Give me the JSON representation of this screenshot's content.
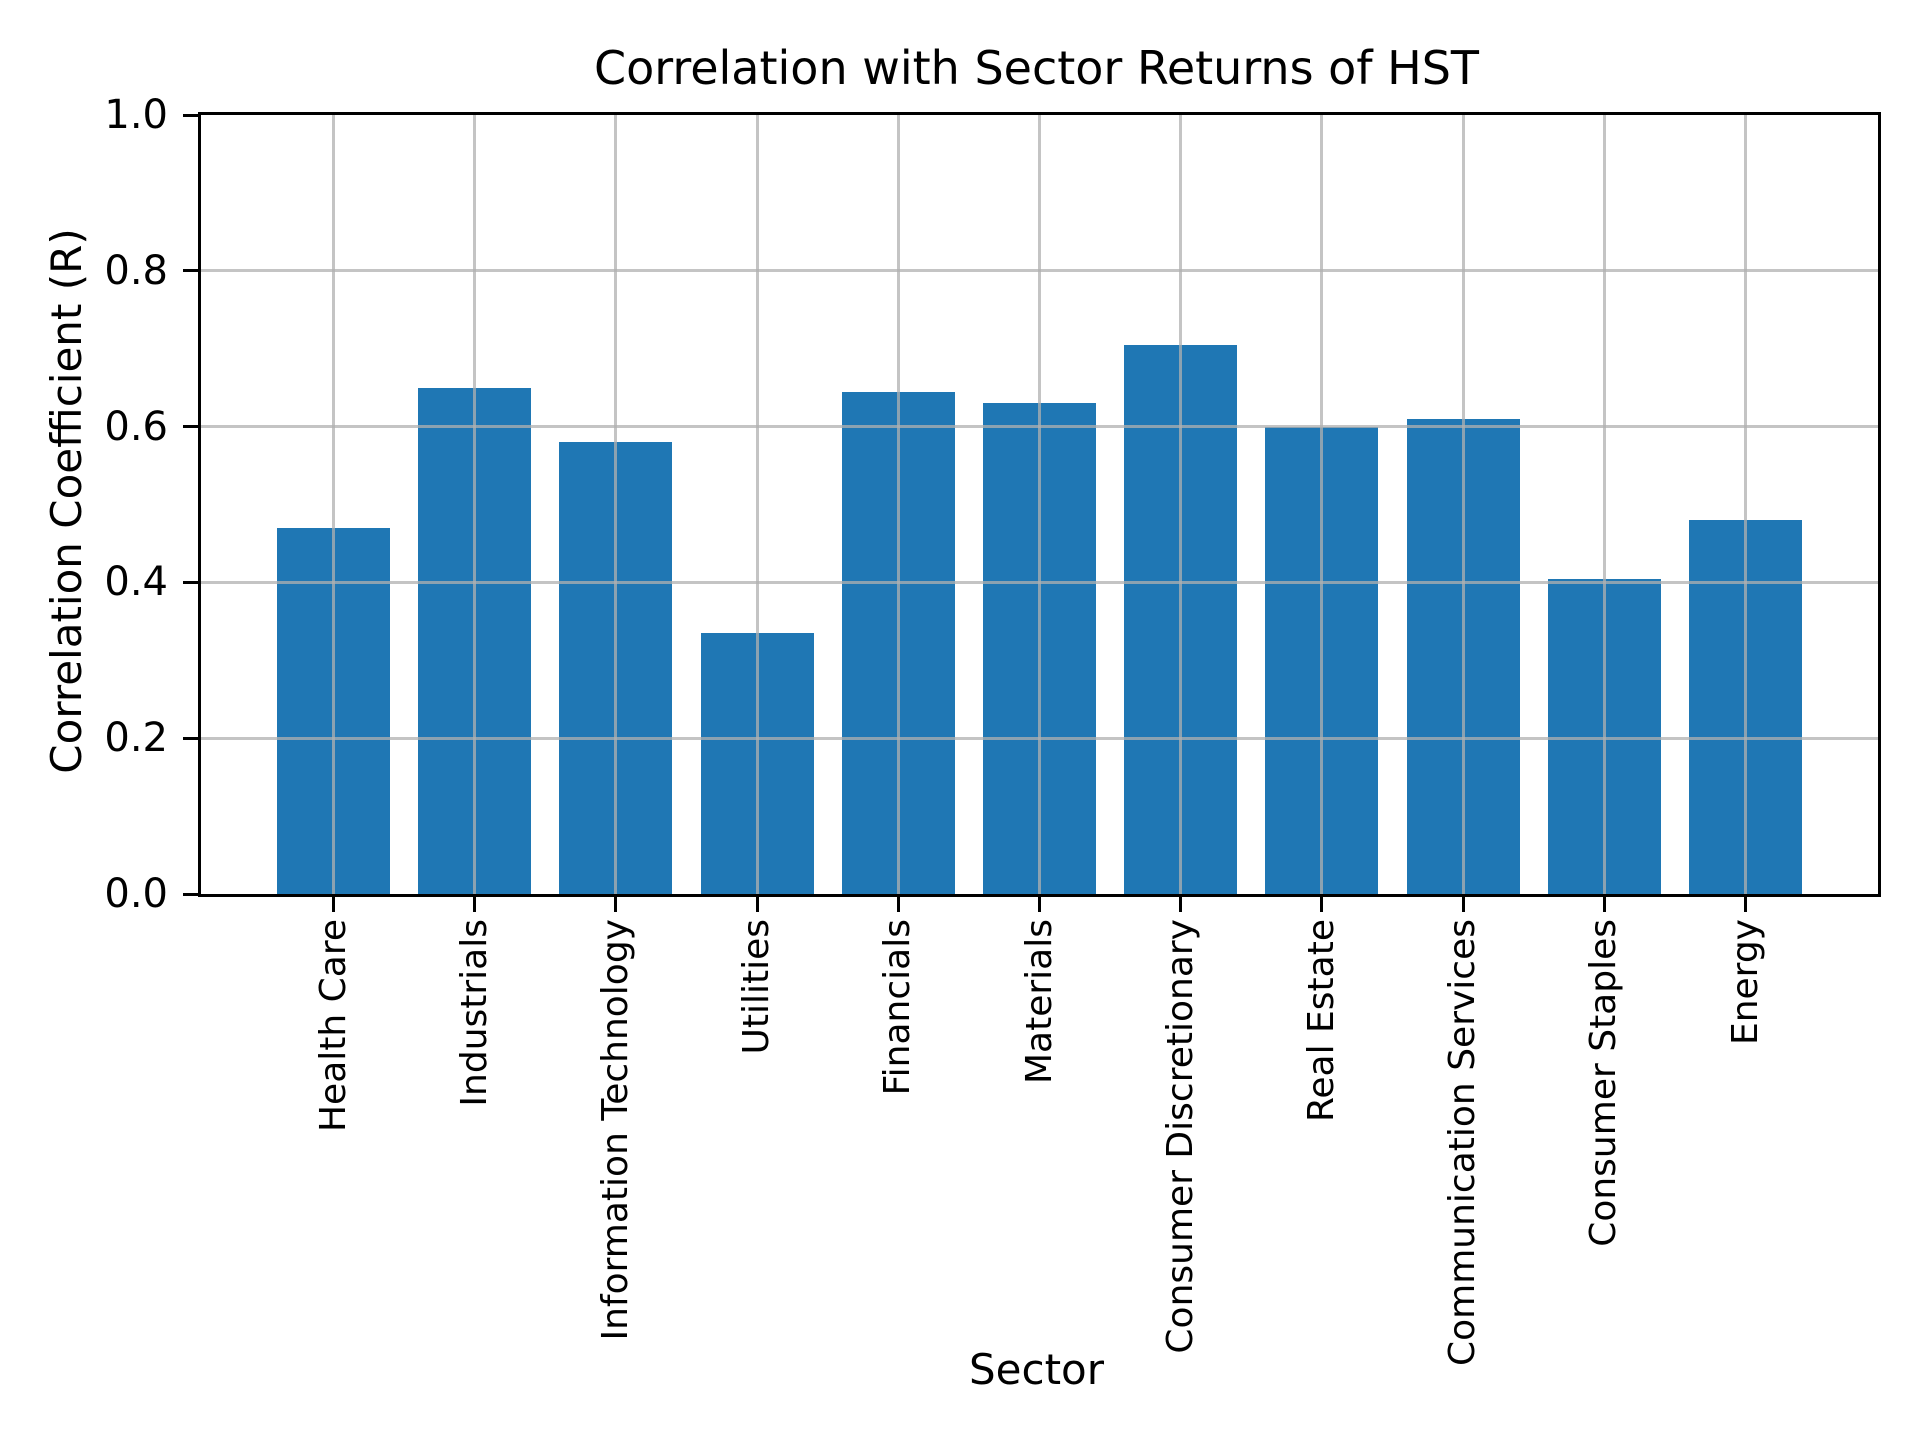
{
  "chart_data": {
    "type": "bar",
    "title": "Correlation with Sector Returns of HST",
    "xlabel": "Sector",
    "ylabel": "Correlation Coefficient (R)",
    "categories": [
      "Health Care",
      "Industrials",
      "Information Technology",
      "Utilities",
      "Financials",
      "Materials",
      "Consumer Discretionary",
      "Real Estate",
      "Communication Services",
      "Consumer Staples",
      "Energy"
    ],
    "values": [
      0.47,
      0.65,
      0.58,
      0.335,
      0.645,
      0.63,
      0.705,
      0.6,
      0.61,
      0.405,
      0.48
    ],
    "ylim": [
      0.0,
      1.0
    ],
    "ytick_labels": [
      "0.0",
      "0.2",
      "0.4",
      "0.6",
      "0.8",
      "1.0"
    ],
    "grid": true,
    "legend_position": "none",
    "colors": {
      "bar": "#1f77b4",
      "grid": "#b0b0b0",
      "axis": "#000000",
      "text": "#000000",
      "background": "#ffffff"
    }
  }
}
